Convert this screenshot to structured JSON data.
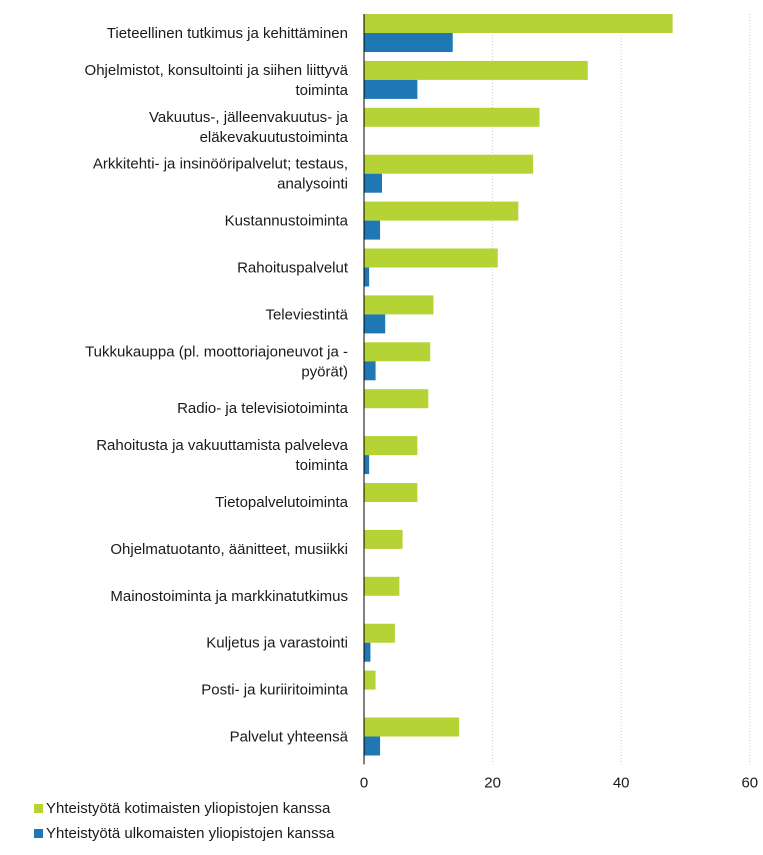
{
  "chart_data": {
    "type": "bar",
    "orientation": "horizontal",
    "categories": [
      [
        "Tieteellinen tutkimus ja kehittäminen"
      ],
      [
        "Ohjelmistot, konsultointi ja siihen liittyvä",
        "toiminta"
      ],
      [
        "Vakuutus-, jälleenvakuutus- ja",
        "eläkevakuutustoiminta"
      ],
      [
        "Arkkitehti- ja insinööripalvelut; testaus,",
        "analysointi"
      ],
      [
        "Kustannustoiminta"
      ],
      [
        "Rahoituspalvelut"
      ],
      [
        "Televiestintä"
      ],
      [
        "Tukkukauppa (pl. moottoriajoneuvot ja -",
        "pyörät)"
      ],
      [
        "Radio- ja televisiotoiminta"
      ],
      [
        "Rahoitusta ja vakuuttamista palveleva",
        "toiminta"
      ],
      [
        "Tietopalvelutoiminta"
      ],
      [
        "Ohjelmatuotanto, äänitteet, musiikki"
      ],
      [
        "Mainostoiminta ja markkinatutkimus"
      ],
      [
        "Kuljetus ja varastointi"
      ],
      [
        "Posti- ja kuriiritoiminta"
      ],
      [
        "Palvelut yhteensä"
      ]
    ],
    "series": [
      {
        "name": "Yhteistyötä kotimaisten yliopistojen kanssa",
        "color": "#b5d334",
        "values": [
          48,
          34.8,
          27.3,
          26.3,
          24,
          20.8,
          10.8,
          10.3,
          10,
          8.3,
          8.3,
          6,
          5.5,
          4.8,
          1.8,
          14.8
        ]
      },
      {
        "name": "Yhteistyötä ulkomaisten yliopistojen kanssa",
        "color": "#1f78b4",
        "values": [
          13.8,
          8.3,
          0,
          2.8,
          2.5,
          0.8,
          3.3,
          1.8,
          0,
          0.8,
          0,
          0,
          0,
          1,
          0,
          2.5
        ]
      }
    ],
    "x_ticks": [
      "0",
      "20",
      "40",
      "60"
    ],
    "xlim": [
      0,
      60
    ],
    "xlabel": "%",
    "grid": "vertical-dotted",
    "legend_position": "bottom-left"
  }
}
